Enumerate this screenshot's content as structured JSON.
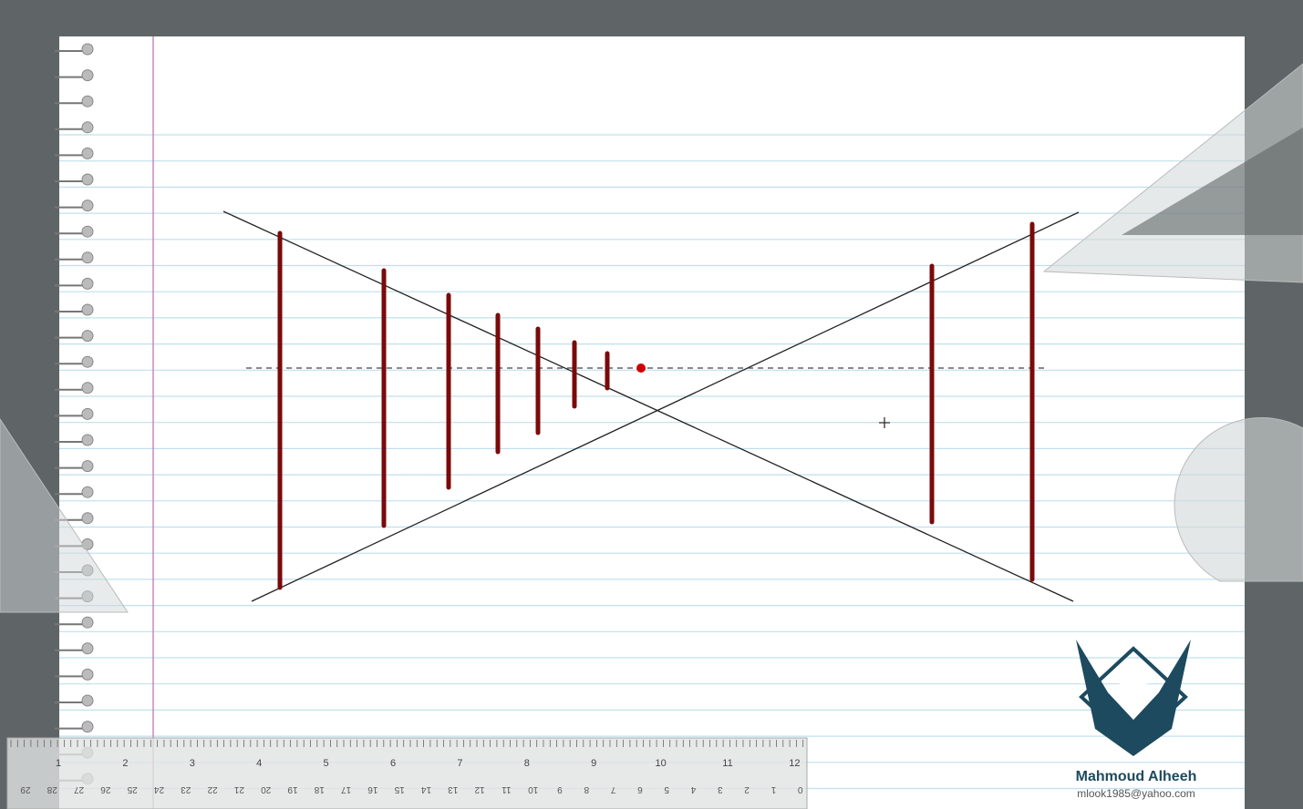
{
  "watermark": {
    "name": "Mahmoud Alheeh",
    "email": "mlook1985@yahoo.com"
  },
  "ruler": {
    "top_labels": [
      "1",
      "2",
      "3",
      "4",
      "5",
      "6",
      "7",
      "8",
      "9",
      "10",
      "11",
      "12"
    ],
    "bottom_labels": [
      "29",
      "28",
      "27",
      "26",
      "25",
      "24",
      "23",
      "22",
      "21",
      "20",
      "19",
      "18",
      "17",
      "16",
      "15",
      "14",
      "13",
      "12",
      "11",
      "10",
      "9",
      "8",
      "7",
      "6",
      "5",
      "4",
      "3",
      "2",
      "1",
      "0"
    ]
  }
}
